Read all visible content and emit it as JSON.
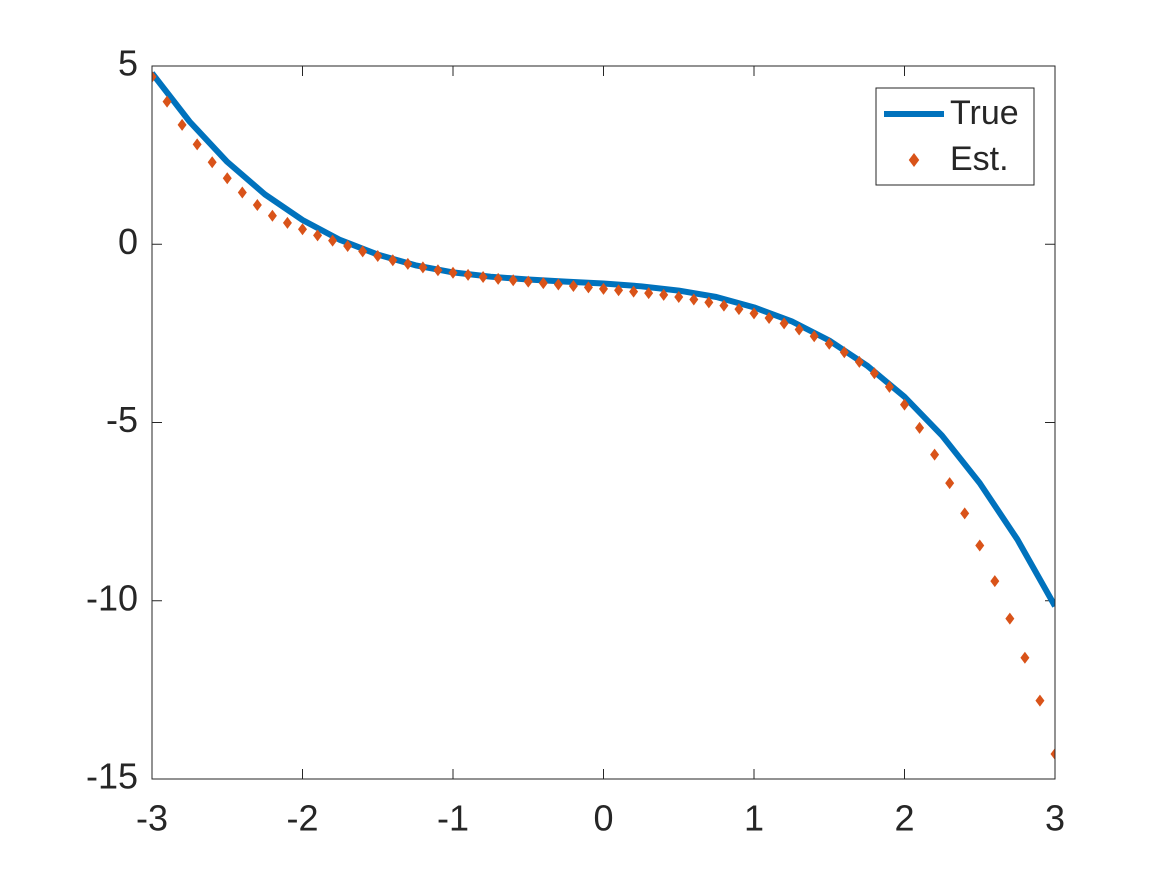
{
  "chart_data": {
    "type": "line",
    "xlim": [
      -3,
      3
    ],
    "ylim": [
      -15,
      5
    ],
    "xticks": [
      -3,
      -2,
      -1,
      0,
      1,
      2,
      3
    ],
    "yticks": [
      -15,
      -10,
      -5,
      0,
      5
    ],
    "box": true,
    "legend": "northeast",
    "series": [
      {
        "name": "True",
        "color": "#0072BD",
        "style": "line",
        "x": [
          -3,
          -2.75,
          -2.5,
          -2.25,
          -2,
          -1.75,
          -1.5,
          -1.25,
          -1,
          -0.75,
          -0.5,
          -0.25,
          0,
          0.25,
          0.5,
          0.75,
          1,
          1.25,
          1.5,
          1.75,
          2,
          2.25,
          2.5,
          2.75,
          3
        ],
        "values": [
          4.8,
          3.44,
          2.31,
          1.4,
          0.68,
          0.12,
          -0.29,
          -0.59,
          -0.79,
          -0.91,
          -0.99,
          -1.05,
          -1.1,
          -1.18,
          -1.3,
          -1.48,
          -1.77,
          -2.16,
          -2.7,
          -3.4,
          -4.28,
          -5.37,
          -6.7,
          -8.28,
          -10.15
        ]
      },
      {
        "name": "Est.",
        "color": "#D95319",
        "style": "diamond",
        "x": [
          -3,
          -2.9,
          -2.8,
          -2.7,
          -2.6,
          -2.5,
          -2.4,
          -2.3,
          -2.2,
          -2.1,
          -2,
          -1.9,
          -1.8,
          -1.7,
          -1.6,
          -1.5,
          -1.4,
          -1.3,
          -1.2,
          -1.1,
          -1,
          -0.9,
          -0.8,
          -0.7,
          -0.6,
          -0.5,
          -0.4,
          -0.3,
          -0.2,
          -0.1,
          0,
          0.1,
          0.2,
          0.3,
          0.4,
          0.5,
          0.6,
          0.7,
          0.8,
          0.9,
          1,
          1.1,
          1.2,
          1.3,
          1.4,
          1.5,
          1.6,
          1.7,
          1.8,
          1.9,
          2,
          2.1,
          2.2,
          2.3,
          2.4,
          2.5,
          2.6,
          2.7,
          2.8,
          2.9,
          3
        ],
        "values": [
          4.7,
          4.0,
          3.35,
          2.8,
          2.3,
          1.85,
          1.45,
          1.1,
          0.8,
          0.6,
          0.42,
          0.25,
          0.1,
          -0.05,
          -0.2,
          -0.33,
          -0.45,
          -0.55,
          -0.65,
          -0.73,
          -0.8,
          -0.86,
          -0.92,
          -0.97,
          -1.01,
          -1.05,
          -1.09,
          -1.13,
          -1.17,
          -1.21,
          -1.25,
          -1.29,
          -1.33,
          -1.37,
          -1.42,
          -1.48,
          -1.55,
          -1.63,
          -1.72,
          -1.82,
          -1.94,
          -2.07,
          -2.22,
          -2.39,
          -2.58,
          -2.79,
          -3.03,
          -3.3,
          -3.62,
          -4.0,
          -4.5,
          -5.15,
          -5.9,
          -6.7,
          -7.55,
          -8.45,
          -9.45,
          -10.5,
          -11.6,
          -12.8,
          -14.3
        ]
      }
    ]
  }
}
